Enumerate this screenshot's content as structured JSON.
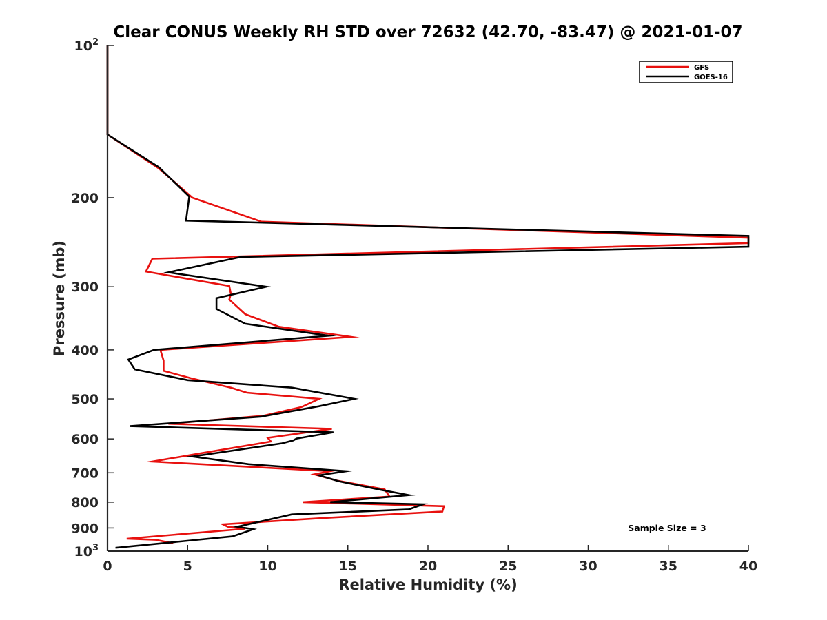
{
  "chart_data": {
    "type": "line",
    "orientation": "profile",
    "title": "Clear CONUS Weekly RH STD over 72632 (42.70, -83.47) @ 2021-01-07",
    "xlabel": "Relative Humidity (%)",
    "ylabel": "Pressure (mb)",
    "xlim": [
      0,
      40
    ],
    "ylim": [
      100,
      1000
    ],
    "y_scale": "log",
    "y_reversed": true,
    "grid": false,
    "legend_position": "top-right",
    "x_ticks": [
      "0",
      "5",
      "10",
      "15",
      "20",
      "25",
      "30",
      "35",
      "40"
    ],
    "y_ticks": [
      {
        "value": 100,
        "base": "10",
        "exp": "2"
      },
      {
        "value": 200,
        "label": "200"
      },
      {
        "value": 300,
        "label": "300"
      },
      {
        "value": 400,
        "label": "400"
      },
      {
        "value": 500,
        "label": "500"
      },
      {
        "value": 600,
        "label": "600"
      },
      {
        "value": 700,
        "label": "700"
      },
      {
        "value": 800,
        "label": "800"
      },
      {
        "value": 900,
        "label": "900"
      },
      {
        "value": 1000,
        "base": "10",
        "exp": "3"
      }
    ],
    "series": [
      {
        "name": "GFS",
        "color": "#e8110f",
        "points": [
          [
            0.0,
            100
          ],
          [
            0.0,
            150
          ],
          [
            3.2,
            175
          ],
          [
            5.3,
            200
          ],
          [
            9.6,
            223
          ],
          [
            40,
            240
          ],
          [
            40,
            246
          ],
          [
            2.8,
            264
          ],
          [
            2.4,
            280
          ],
          [
            7.6,
            299
          ],
          [
            7.7,
            310
          ],
          [
            7.6,
            318
          ],
          [
            8.6,
            340
          ],
          [
            10.7,
            360
          ],
          [
            15.2,
            377
          ],
          [
            3.3,
            400
          ],
          [
            3.5,
            420
          ],
          [
            3.5,
            440
          ],
          [
            5.2,
            455
          ],
          [
            7.7,
            475
          ],
          [
            8.7,
            486
          ],
          [
            13.2,
            500
          ],
          [
            12.1,
            519
          ],
          [
            9.7,
            540
          ],
          [
            3.8,
            560
          ],
          [
            14.0,
            573
          ],
          [
            10.0,
            597
          ],
          [
            10.2,
            607
          ],
          [
            5.9,
            640
          ],
          [
            2.8,
            665
          ],
          [
            13.9,
            695
          ],
          [
            12.9,
            705
          ],
          [
            14.3,
            725
          ],
          [
            17.3,
            755
          ],
          [
            17.6,
            780
          ],
          [
            12.2,
            800
          ],
          [
            21.0,
            815
          ],
          [
            20.9,
            835
          ],
          [
            13.5,
            860
          ],
          [
            7.2,
            885
          ],
          [
            7.5,
            895
          ],
          [
            8.6,
            903
          ],
          [
            1.2,
            945
          ],
          [
            3.0,
            950
          ],
          [
            4.1,
            965
          ]
        ]
      },
      {
        "name": "GOES-16",
        "color": "#000000",
        "points": [
          [
            0.0,
            100
          ],
          [
            0.0,
            150
          ],
          [
            3.2,
            174
          ],
          [
            5.1,
            199
          ],
          [
            4.9,
            222
          ],
          [
            40,
            238
          ],
          [
            40,
            250
          ],
          [
            8.3,
            262
          ],
          [
            3.8,
            281
          ],
          [
            9.9,
            300
          ],
          [
            6.8,
            316
          ],
          [
            6.8,
            332
          ],
          [
            8.6,
            355
          ],
          [
            13.8,
            375
          ],
          [
            2.9,
            400
          ],
          [
            1.3,
            418
          ],
          [
            1.7,
            437
          ],
          [
            5.0,
            459
          ],
          [
            11.5,
            475
          ],
          [
            15.4,
            500
          ],
          [
            13.2,
            517
          ],
          [
            9.6,
            542
          ],
          [
            1.4,
            566
          ],
          [
            14.1,
            582
          ],
          [
            11.8,
            599
          ],
          [
            11.6,
            604
          ],
          [
            10.9,
            612
          ],
          [
            5.3,
            650
          ],
          [
            8.8,
            673
          ],
          [
            14.9,
            695
          ],
          [
            13.2,
            708
          ],
          [
            14.4,
            727
          ],
          [
            16.9,
            755
          ],
          [
            18.8,
            775
          ],
          [
            13.9,
            800
          ],
          [
            19.7,
            808
          ],
          [
            18.8,
            827
          ],
          [
            11.5,
            846
          ],
          [
            8.1,
            895
          ],
          [
            9.1,
            905
          ],
          [
            7.8,
            935
          ],
          [
            0.5,
            985
          ]
        ]
      }
    ],
    "annotations": [
      "Sample Size = 3"
    ]
  }
}
